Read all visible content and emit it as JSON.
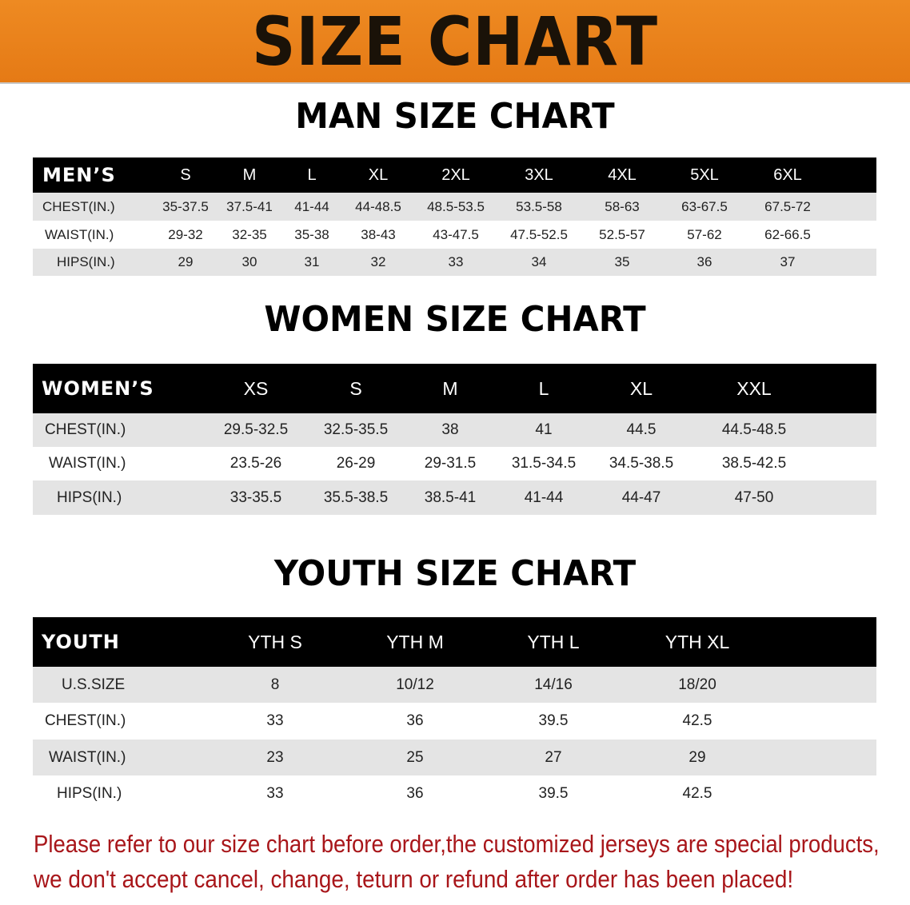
{
  "banner_title": "SIZE CHART",
  "colors": {
    "banner": "#E8821E",
    "header_row": "#000000",
    "shaded_row": "#E4E4E4",
    "note_text": "#A8161A"
  },
  "men": {
    "title": "MAN SIZE CHART",
    "header": [
      "MEN’S",
      "S",
      "M",
      "L",
      "XL",
      "2XL",
      "3XL",
      "4XL",
      "5XL",
      "6XL"
    ],
    "rows": [
      [
        "CHEST(IN.)",
        "35-37.5",
        "37.5-41",
        "41-44",
        "44-48.5",
        "48.5-53.5",
        "53.5-58",
        "58-63",
        "63-67.5",
        "67.5-72"
      ],
      [
        "WAIST(IN.)",
        "29-32",
        "32-35",
        "35-38",
        "38-43",
        "43-47.5",
        "47.5-52.5",
        "52.5-57",
        "57-62",
        "62-66.5"
      ],
      [
        "HIPS(IN.)",
        "29",
        "30",
        "31",
        "32",
        "33",
        "34",
        "35",
        "36",
        "37"
      ]
    ]
  },
  "women": {
    "title": "WOMEN SIZE CHART",
    "header": [
      "WOMEN’S",
      "XS",
      "S",
      "M",
      "L",
      "XL",
      "XXL"
    ],
    "rows": [
      [
        "CHEST(IN.)",
        "29.5-32.5",
        "32.5-35.5",
        "38",
        "41",
        "44.5",
        "44.5-48.5"
      ],
      [
        "WAIST(IN.)",
        "23.5-26",
        "26-29",
        "29-31.5",
        "31.5-34.5",
        "34.5-38.5",
        "38.5-42.5"
      ],
      [
        "HIPS(IN.)",
        "33-35.5",
        "35.5-38.5",
        "38.5-41",
        "41-44",
        "44-47",
        "47-50"
      ]
    ]
  },
  "youth": {
    "title": "YOUTH SIZE CHART",
    "header": [
      "YOUTH",
      "YTH S",
      "YTH M",
      "YTH L",
      "YTH XL"
    ],
    "rows": [
      [
        "U.S.SIZE",
        "8",
        "10/12",
        "14/16",
        "18/20"
      ],
      [
        "CHEST(IN.)",
        "33",
        "36",
        "39.5",
        "42.5"
      ],
      [
        "WAIST(IN.)",
        "23",
        "25",
        "27",
        "29"
      ],
      [
        "HIPS(IN.)",
        "33",
        "36",
        "39.5",
        "42.5"
      ]
    ]
  },
  "note": {
    "line1": "Please refer to our size chart before order,the customized jerseys are special products,",
    "line2": "we don't accept cancel, change, teturn or refund after order has been placed!"
  }
}
